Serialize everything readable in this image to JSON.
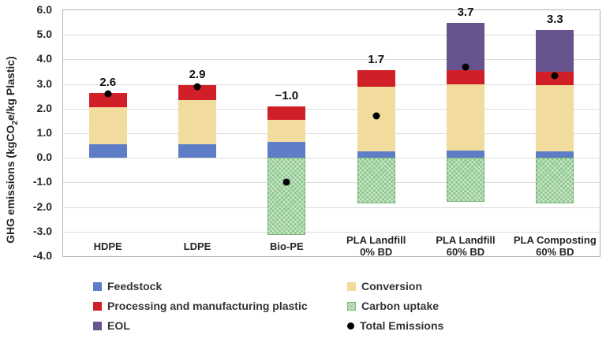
{
  "y_axis": {
    "title_parts": {
      "pre": "GHG emissions (kgCO",
      "sub": "2",
      "post": "e/kg Plastic)"
    },
    "ticks": [
      "6.0",
      "5.0",
      "4.0",
      "3.0",
      "2.0",
      "1.0",
      "0.0",
      "-1.0",
      "-2.0",
      "-3.0",
      "-4.0"
    ]
  },
  "chart_data": {
    "type": "bar",
    "stacked": true,
    "title": "",
    "xlabel": "",
    "ylabel": "GHG emissions (kgCO2e/kg Plastic)",
    "ylim": [
      -4.0,
      6.0
    ],
    "grid": true,
    "legend_position": "bottom",
    "categories": [
      "HDPE",
      "LDPE",
      "Bio-PE",
      "PLA Landfill 0% BD",
      "PLA Landfill 60% BD",
      "PLA Composting 60% BD"
    ],
    "category_label_lines": [
      [
        "HDPE"
      ],
      [
        "LDPE"
      ],
      [
        "Bio-PE"
      ],
      [
        "PLA Landfill",
        "0% BD"
      ],
      [
        "PLA Landfill",
        "60% BD"
      ],
      [
        "PLA Composting",
        "60% BD"
      ]
    ],
    "series": [
      {
        "name": "Feedstock",
        "color": "#5d7ec6",
        "values": [
          0.55,
          0.55,
          0.65,
          0.25,
          0.3,
          0.25
        ]
      },
      {
        "name": "Conversion",
        "color": "#f1dc9e",
        "values": [
          1.5,
          1.8,
          0.9,
          2.65,
          2.7,
          2.7
        ]
      },
      {
        "name": "Processing and manufacturing plastic",
        "color": "#d01f26",
        "values": [
          0.6,
          0.6,
          0.55,
          0.65,
          0.55,
          0.55
        ]
      },
      {
        "name": "EOL",
        "color": "#67538e",
        "values": [
          0,
          0,
          0,
          0,
          1.95,
          1.7
        ]
      },
      {
        "name": "Carbon uptake",
        "color": "#8dc88d",
        "pattern": true,
        "values": [
          0,
          0,
          -3.15,
          -1.85,
          -1.8,
          -1.85
        ]
      }
    ],
    "totals": {
      "name": "Total Emissions",
      "marker": "dot",
      "marker_color": "#000000",
      "values": [
        2.6,
        2.9,
        -1.0,
        1.7,
        3.7,
        3.35
      ],
      "labels": [
        "2.6",
        "2.9",
        "−1.0",
        "1.7",
        "3.7",
        "3.3"
      ]
    }
  },
  "legend": {
    "columns": [
      [
        {
          "label": "Feedstock",
          "swatch": "square",
          "color": "#5d7ec6"
        },
        {
          "label": "Processing and manufacturing plastic",
          "swatch": "square",
          "color": "#d01f26"
        },
        {
          "label": "EOL",
          "swatch": "square",
          "color": "#67538e"
        }
      ],
      [
        {
          "label": "Conversion",
          "swatch": "square",
          "color": "#f1dc9e"
        },
        {
          "label": "Carbon uptake",
          "swatch": "square-pattern",
          "color": "#8dc88d"
        },
        {
          "label": "Total Emissions",
          "swatch": "dot",
          "color": "#000000"
        }
      ]
    ]
  }
}
